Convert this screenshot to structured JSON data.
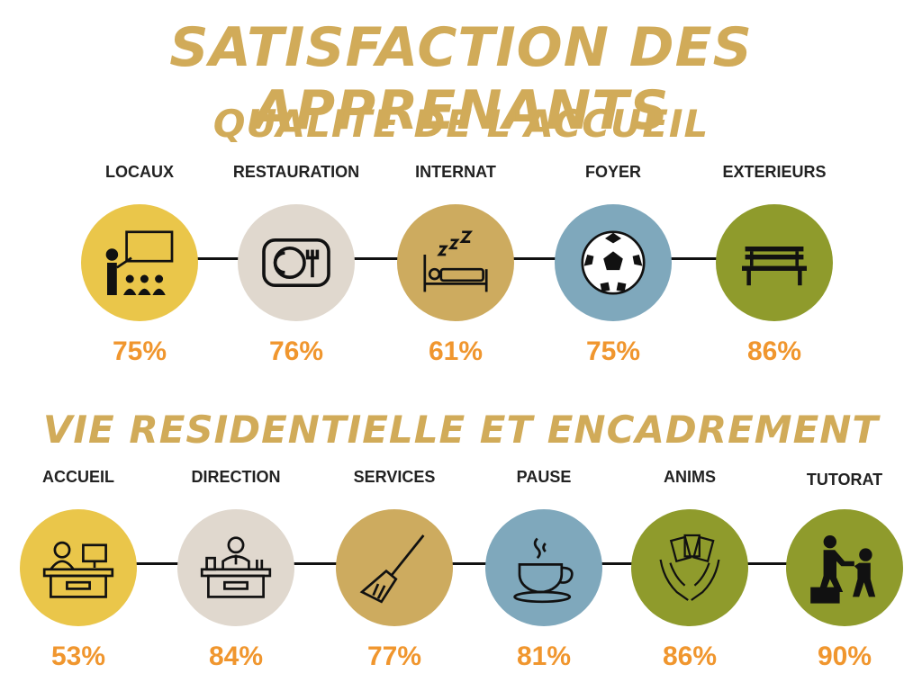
{
  "title": "SATISFACTION DES APPRENANTS",
  "section1": {
    "title": "QUALITE DE L'ACCUEIL",
    "items": [
      {
        "label": "LOCAUX",
        "value": "75%",
        "icon": "classroom-icon",
        "color": "#eac64a"
      },
      {
        "label": "RESTAURATION",
        "value": "76%",
        "icon": "plate-icon",
        "color": "#e0d8ce"
      },
      {
        "label": "INTERNAT",
        "value": "61%",
        "icon": "bed-sleep-icon",
        "color": "#cdab5f"
      },
      {
        "label": "FOYER",
        "value": "75%",
        "icon": "soccer-ball-icon",
        "color": "#7fa8bc"
      },
      {
        "label": "EXTERIEURS",
        "value": "86%",
        "icon": "bench-icon",
        "color": "#8f9b2c"
      }
    ]
  },
  "section2": {
    "title": "VIE RESIDENTIELLE ET ENCADREMENT",
    "items": [
      {
        "label": "ACCUEIL",
        "value": "53%",
        "icon": "reception-desk-icon",
        "color": "#eac64a"
      },
      {
        "label": "DIRECTION",
        "value": "84%",
        "icon": "director-desk-icon",
        "color": "#e0d8ce"
      },
      {
        "label": "SERVICES",
        "value": "77%",
        "icon": "broom-icon",
        "color": "#cdab5f"
      },
      {
        "label": "PAUSE",
        "value": "81%",
        "icon": "coffee-cup-icon",
        "color": "#7fa8bc"
      },
      {
        "label": "ANIMS",
        "value": "86%",
        "icon": "playing-cards-icon",
        "color": "#8f9b2c"
      },
      {
        "label": "TUTORAT",
        "value": "90%",
        "icon": "helping-hand-icon",
        "color": "#8f9b2c"
      }
    ]
  }
}
